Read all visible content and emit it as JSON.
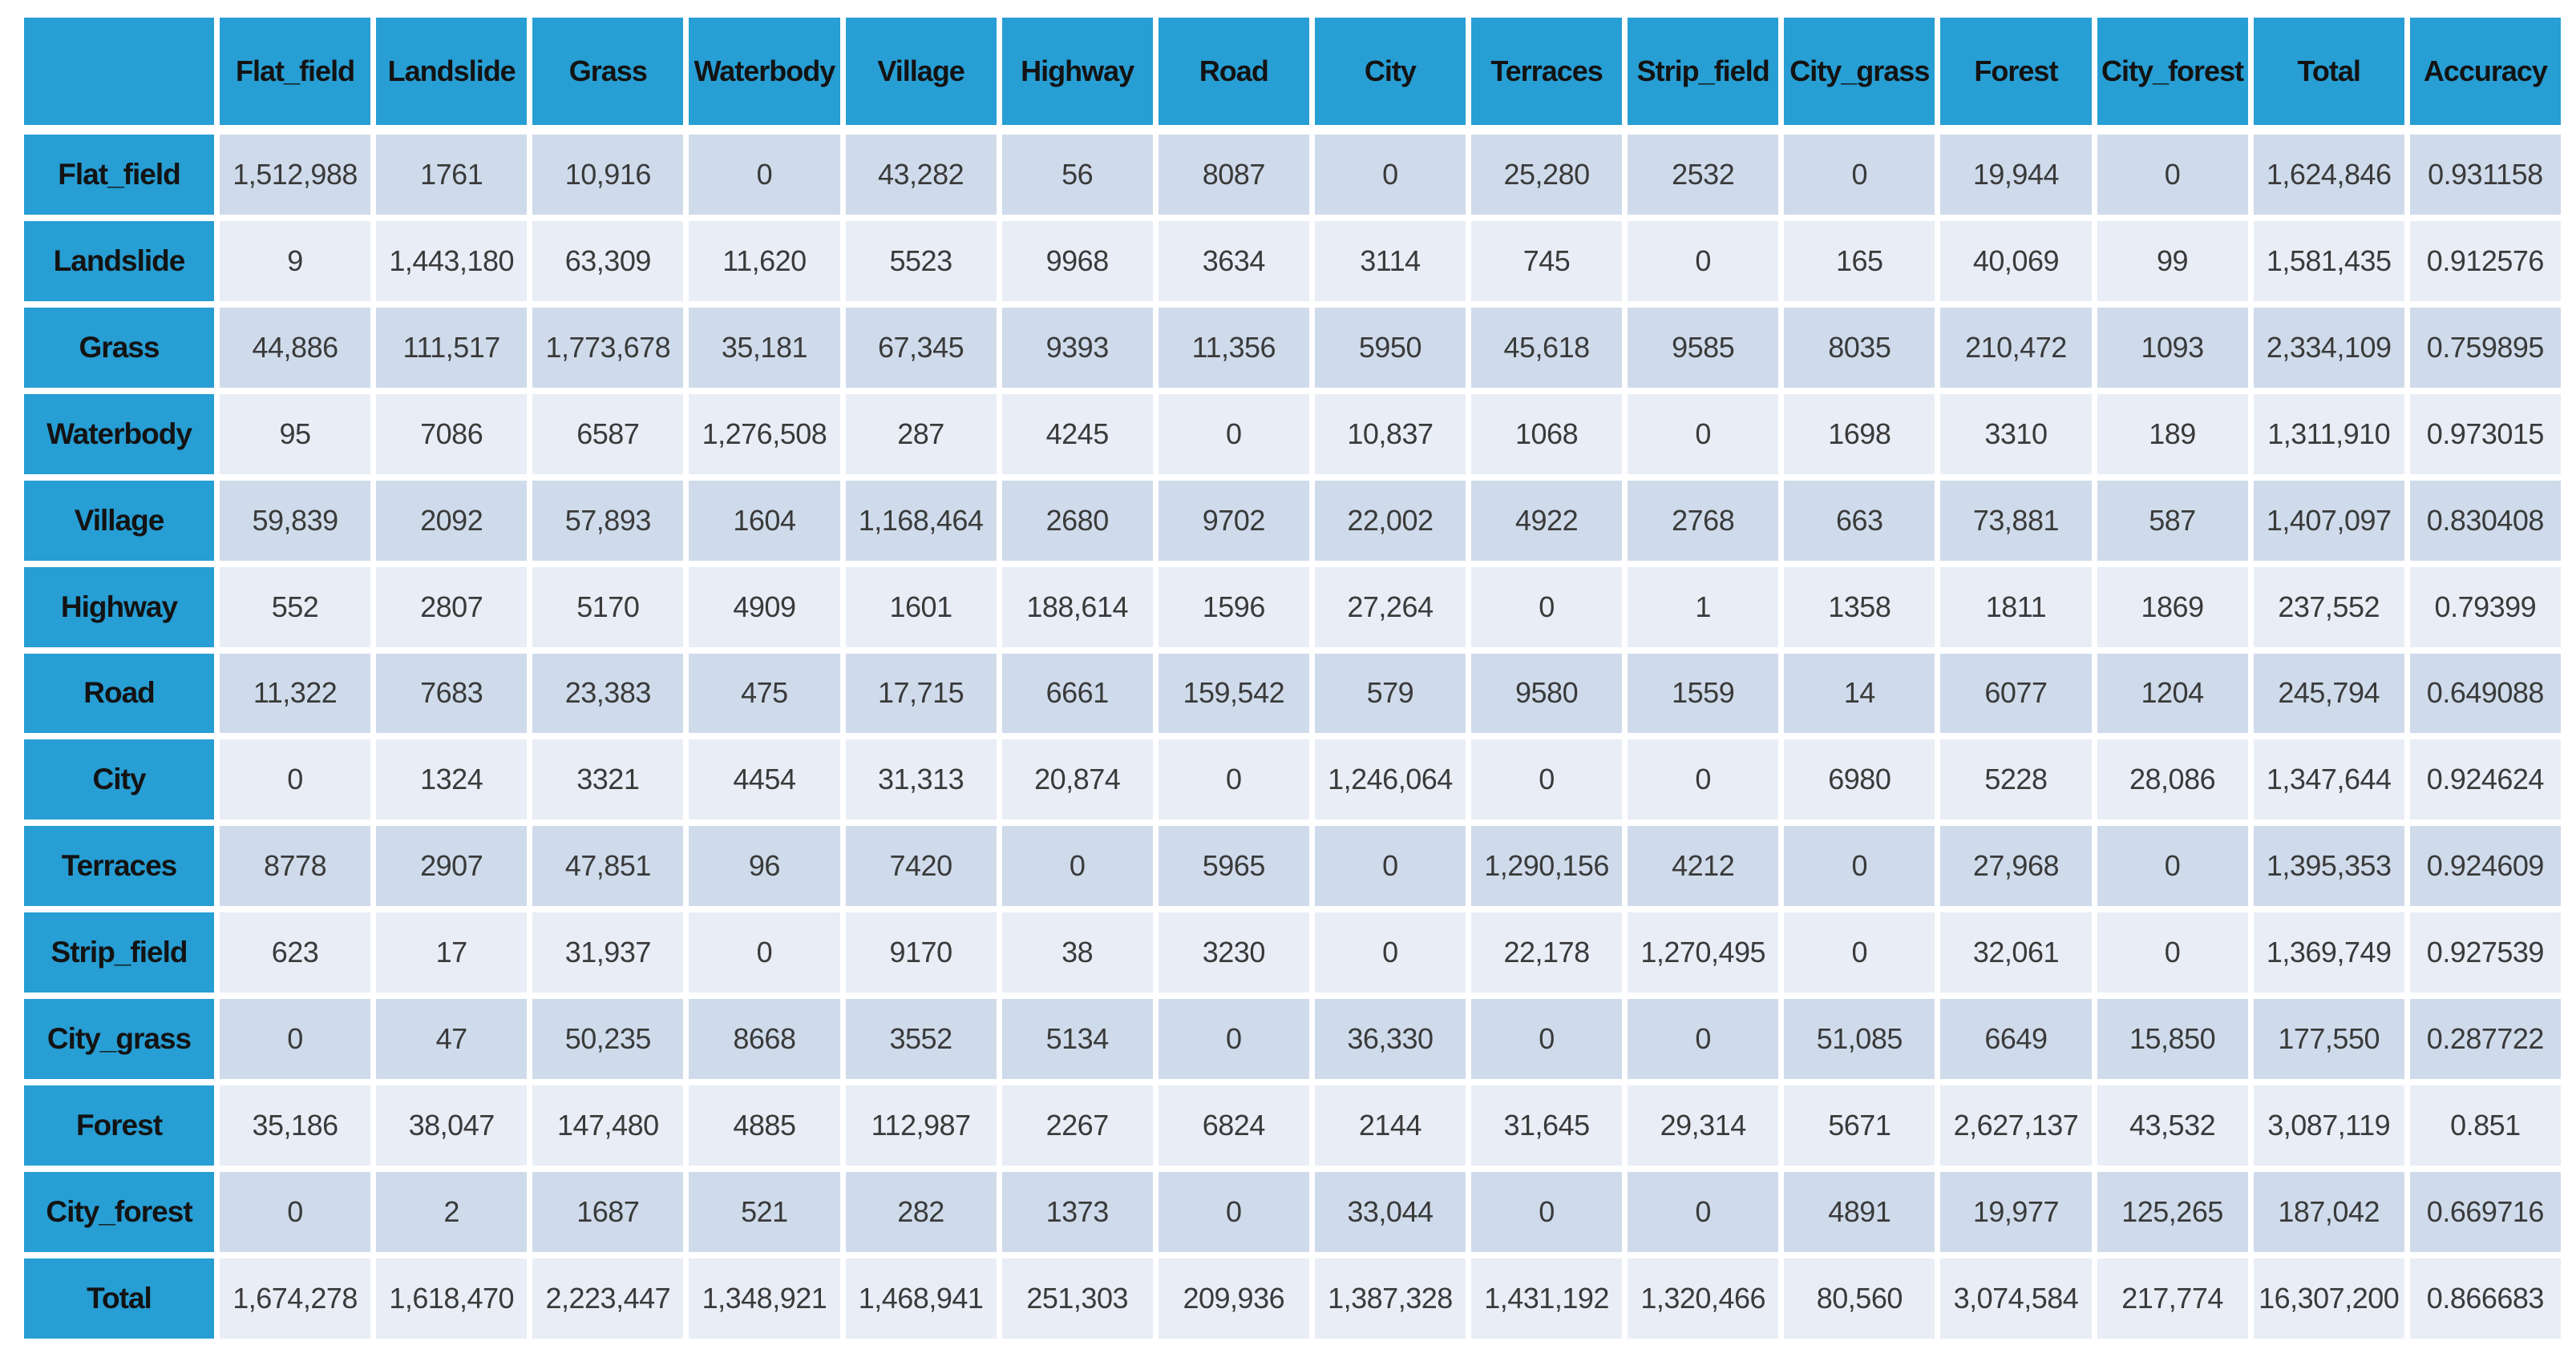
{
  "colors": {
    "page_bg": "#FFFFFF",
    "header_bg": "#279ED4",
    "band_dark": "#CFDBEB",
    "band_light": "#E8EDF6",
    "grid": "#FFFFFF",
    "header_text": "#131313",
    "value_text": "#3A3A3A"
  },
  "table": {
    "corner_label": "",
    "columns": [
      "Flat_field",
      "Landslide",
      "Grass",
      "Waterbody",
      "Village",
      "Highway",
      "Road",
      "City",
      "Terraces",
      "Strip_field",
      "City_grass",
      "Forest",
      "City_forest",
      "Total",
      "Accuracy"
    ],
    "rows": [
      {
        "label": "Flat_field",
        "values": [
          "1,512,988",
          "1761",
          "10,916",
          "0",
          "43,282",
          "56",
          "8087",
          "0",
          "25,280",
          "2532",
          "0",
          "19,944",
          "0",
          "1,624,846",
          "0.931158"
        ]
      },
      {
        "label": "Landslide",
        "values": [
          "9",
          "1,443,180",
          "63,309",
          "11,620",
          "5523",
          "9968",
          "3634",
          "3114",
          "745",
          "0",
          "165",
          "40,069",
          "99",
          "1,581,435",
          "0.912576"
        ]
      },
      {
        "label": "Grass",
        "values": [
          "44,886",
          "111,517",
          "1,773,678",
          "35,181",
          "67,345",
          "9393",
          "11,356",
          "5950",
          "45,618",
          "9585",
          "8035",
          "210,472",
          "1093",
          "2,334,109",
          "0.759895"
        ]
      },
      {
        "label": "Waterbody",
        "values": [
          "95",
          "7086",
          "6587",
          "1,276,508",
          "287",
          "4245",
          "0",
          "10,837",
          "1068",
          "0",
          "1698",
          "3310",
          "189",
          "1,311,910",
          "0.973015"
        ]
      },
      {
        "label": "Village",
        "values": [
          "59,839",
          "2092",
          "57,893",
          "1604",
          "1,168,464",
          "2680",
          "9702",
          "22,002",
          "4922",
          "2768",
          "663",
          "73,881",
          "587",
          "1,407,097",
          "0.830408"
        ]
      },
      {
        "label": "Highway",
        "values": [
          "552",
          "2807",
          "5170",
          "4909",
          "1601",
          "188,614",
          "1596",
          "27,264",
          "0",
          "1",
          "1358",
          "1811",
          "1869",
          "237,552",
          "0.79399"
        ]
      },
      {
        "label": "Road",
        "values": [
          "11,322",
          "7683",
          "23,383",
          "475",
          "17,715",
          "6661",
          "159,542",
          "579",
          "9580",
          "1559",
          "14",
          "6077",
          "1204",
          "245,794",
          "0.649088"
        ]
      },
      {
        "label": "City",
        "values": [
          "0",
          "1324",
          "3321",
          "4454",
          "31,313",
          "20,874",
          "0",
          "1,246,064",
          "0",
          "0",
          "6980",
          "5228",
          "28,086",
          "1,347,644",
          "0.924624"
        ]
      },
      {
        "label": "Terraces",
        "values": [
          "8778",
          "2907",
          "47,851",
          "96",
          "7420",
          "0",
          "5965",
          "0",
          "1,290,156",
          "4212",
          "0",
          "27,968",
          "0",
          "1,395,353",
          "0.924609"
        ]
      },
      {
        "label": "Strip_field",
        "values": [
          "623",
          "17",
          "31,937",
          "0",
          "9170",
          "38",
          "3230",
          "0",
          "22,178",
          "1,270,495",
          "0",
          "32,061",
          "0",
          "1,369,749",
          "0.927539"
        ]
      },
      {
        "label": "City_grass",
        "values": [
          "0",
          "47",
          "50,235",
          "8668",
          "3552",
          "5134",
          "0",
          "36,330",
          "0",
          "0",
          "51,085",
          "6649",
          "15,850",
          "177,550",
          "0.287722"
        ]
      },
      {
        "label": "Forest",
        "values": [
          "35,186",
          "38,047",
          "147,480",
          "4885",
          "112,987",
          "2267",
          "6824",
          "2144",
          "31,645",
          "29,314",
          "5671",
          "2,627,137",
          "43,532",
          "3,087,119",
          "0.851"
        ]
      },
      {
        "label": "City_forest",
        "values": [
          "0",
          "2",
          "1687",
          "521",
          "282",
          "1373",
          "0",
          "33,044",
          "0",
          "0",
          "4891",
          "19,977",
          "125,265",
          "187,042",
          "0.669716"
        ]
      },
      {
        "label": "Total",
        "values": [
          "1,674,278",
          "1,618,470",
          "2,223,447",
          "1,348,921",
          "1,468,941",
          "251,303",
          "209,936",
          "1,387,328",
          "1,431,192",
          "1,320,466",
          "80,560",
          "3,074,584",
          "217,774",
          "16,307,200",
          "0.866683"
        ]
      }
    ]
  },
  "chart_data": {
    "type": "table",
    "title": "",
    "columns": [
      "Flat_field",
      "Landslide",
      "Grass",
      "Waterbody",
      "Village",
      "Highway",
      "Road",
      "City",
      "Terraces",
      "Strip_field",
      "City_grass",
      "Forest",
      "City_forest",
      "Total",
      "Accuracy"
    ],
    "row_labels": [
      "Flat_field",
      "Landslide",
      "Grass",
      "Waterbody",
      "Village",
      "Highway",
      "Road",
      "City",
      "Terraces",
      "Strip_field",
      "City_grass",
      "Forest",
      "City_forest",
      "Total"
    ],
    "matrix": [
      [
        1512988,
        1761,
        10916,
        0,
        43282,
        56,
        8087,
        0,
        25280,
        2532,
        0,
        19944,
        0,
        1624846,
        0.931158
      ],
      [
        9,
        1443180,
        63309,
        11620,
        5523,
        9968,
        3634,
        3114,
        745,
        0,
        165,
        40069,
        99,
        1581435,
        0.912576
      ],
      [
        44886,
        111517,
        1773678,
        35181,
        67345,
        9393,
        11356,
        5950,
        45618,
        9585,
        8035,
        210472,
        1093,
        2334109,
        0.759895
      ],
      [
        95,
        7086,
        6587,
        1276508,
        287,
        4245,
        0,
        10837,
        1068,
        0,
        1698,
        3310,
        189,
        1311910,
        0.973015
      ],
      [
        59839,
        2092,
        57893,
        1604,
        1168464,
        2680,
        9702,
        22002,
        4922,
        2768,
        663,
        73881,
        587,
        1407097,
        0.830408
      ],
      [
        552,
        2807,
        5170,
        4909,
        1601,
        188614,
        1596,
        27264,
        0,
        1,
        1358,
        1811,
        1869,
        237552,
        0.79399
      ],
      [
        11322,
        7683,
        23383,
        475,
        17715,
        6661,
        159542,
        579,
        9580,
        1559,
        14,
        6077,
        1204,
        245794,
        0.649088
      ],
      [
        0,
        1324,
        3321,
        4454,
        31313,
        20874,
        0,
        1246064,
        0,
        0,
        6980,
        5228,
        28086,
        1347644,
        0.924624
      ],
      [
        8778,
        2907,
        47851,
        96,
        7420,
        0,
        5965,
        0,
        1290156,
        4212,
        0,
        27968,
        0,
        1395353,
        0.924609
      ],
      [
        623,
        17,
        31937,
        0,
        9170,
        38,
        3230,
        0,
        22178,
        1270495,
        0,
        32061,
        0,
        1369749,
        0.927539
      ],
      [
        0,
        47,
        50235,
        8668,
        3552,
        5134,
        0,
        36330,
        0,
        0,
        51085,
        6649,
        15850,
        177550,
        0.287722
      ],
      [
        35186,
        38047,
        147480,
        4885,
        112987,
        2267,
        6824,
        2144,
        31645,
        29314,
        5671,
        2627137,
        43532,
        3087119,
        0.851
      ],
      [
        0,
        2,
        1687,
        521,
        282,
        1373,
        0,
        33044,
        0,
        0,
        4891,
        19977,
        125265,
        187042,
        0.669716
      ],
      [
        1674278,
        1618470,
        2223447,
        1348921,
        1468941,
        251303,
        209936,
        1387328,
        1431192,
        1320466,
        80560,
        3074584,
        217774,
        16307200,
        0.866683
      ]
    ]
  }
}
